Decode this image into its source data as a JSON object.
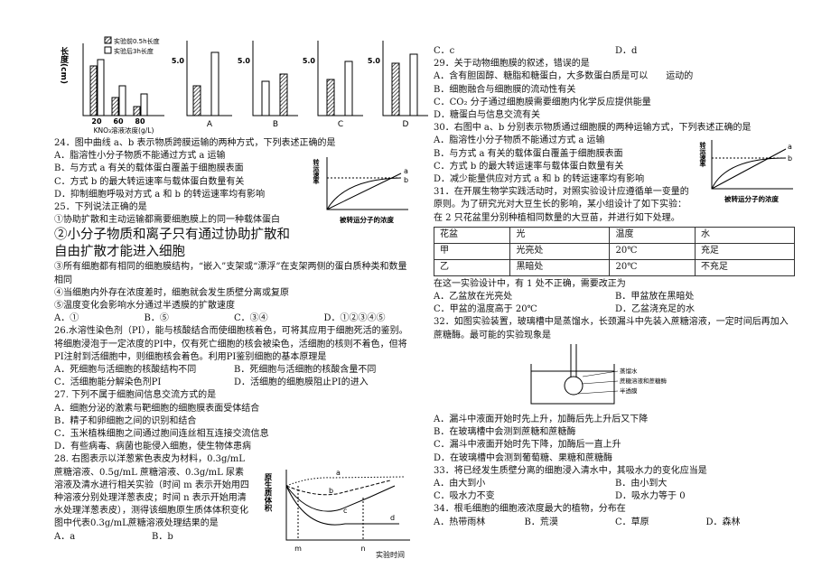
{
  "left_column": {
    "figure_1": {
      "legend": [
        "实验前0.5h长度",
        "实验后3h长度"
      ],
      "y_label": "长度(cm)",
      "x_label": "KNO₃溶液浓度(g/L)",
      "x_ticks": [
        "20",
        "60",
        "80"
      ],
      "y_tick": "5.0",
      "panels": [
        "A",
        "B",
        "C",
        "D"
      ]
    },
    "questions": [
      {
        "stem": "24．图中曲线 a、b 表示物质跨膜运输的两种方式，下列表述正确的是",
        "options": [
          "A．脂溶性小分子物质不能通过方式 a 运输",
          "B．与方式 a 有关的载体蛋白覆盖于细胞膜表面",
          "C．方式 b 的最大转运速率与载体蛋白数量有关",
          "D．抑制细胞呼吸对方式 a 和 b 的转运速率均有影响"
        ],
        "figure": {
          "y_label": "转运速率",
          "x_label": "被转运分子的浓度",
          "curves": [
            "a",
            "b"
          ]
        }
      },
      {
        "stem": "25．下列说法正确的是",
        "items": [
          "①协助扩散和主动运输都需要细胞膜上的同一种载体蛋白",
          "②小分子物质和离子只有通过协助扩散和自由扩散才能进入细胞",
          "③所有细胞都有相同的细胞膜结构，“嵌入”支架或“漂浮”在支架两侧的蛋白质种类和数量相同",
          "④当细胞内外存在浓度差时，细胞就会发生质壁分离或复原",
          "⑤温度变化会影响水分通过半透膜的扩散速度"
        ],
        "options": [
          "A．①",
          "B．⑤",
          "C．③④",
          "D．①②③④⑤"
        ]
      },
      {
        "stem": "26.水溶性染色剂（PI），能与核酸结合而使细胞核着色，可将其应用于细胞死活的鉴别。将细胞浸泡于一定浓度的PI中，仅有死亡细胞的核会被染色，活细胞的核则不着色，但将PI注射到活细胞中，则细胞核会着色。利用PI鉴别细胞的基本原理是",
        "options": [
          "A．死细胞与活细胞的核酸结构不同",
          "B．死细胞与活细胞的核酸含量不同",
          "C．活细胞能分解染色剂PI",
          "D．活细胞的细胞膜阻止PI的进入"
        ]
      },
      {
        "stem": "27. 下列不属于细胞间信息交流方式的是",
        "options": [
          "A．细胞分泌的激素与靶细胞的细胞膜表面受体结合",
          "B．精子和卵细胞之间的识别和结合",
          "C．玉米植株细胞之间通过胞间连丝相互连接交流信息",
          "D．有些病毒、病菌也能侵入细胞，使生物体患病"
        ]
      },
      {
        "stem": "28. 右图表示以洋葱紫色表皮为材料，0.3g/mL 蔗糖溶液、0.5g/mL 蔗糖溶液、0.3g/mL 尿素溶液及清水进行相关实验（时间 m 表示开始用四种溶液分别处理洋葱表皮；时间 n 表示开始用清水处理洋葱表皮），测得该细胞原生质体体积变化图中代表0.3g/mL蔗糖溶液处理结果的是",
        "options": [
          "A．a",
          "B．b"
        ],
        "figure": {
          "y_label": "原生质体积",
          "x_label": "实验时间",
          "times": [
            "m",
            "n"
          ],
          "curves": [
            "a",
            "b",
            "c",
            "d"
          ]
        }
      }
    ]
  },
  "right_column": {
    "continued_options": [
      "C．c",
      "D．d"
    ],
    "questions": [
      {
        "stem": "29．关于动物细胞膜的叙述，错误的是",
        "options": [
          "A．含有胆固醇、糖脂和糖蛋白，大多数蛋白质是可以　　运动的",
          "B．细胞融合与细胞膜的流动性有关",
          "C．CO₂ 分子通过细胞膜需要细胞内化学反应提供能量",
          "D．糖蛋白与信息交流有关"
        ]
      },
      {
        "stem": "30．右图中 a、b 分别表示物质通过细胞膜的两种运输方式，下列表述正确的是",
        "options": [
          "A．脂溶性小分子物质不能通过方式 a 运输",
          "B．与方式 a 有关的载体蛋白覆盖于细胞膜表面",
          "C．方式 b 的最大转运速率与载体蛋白数量有关",
          "D．减少能量供应对方式 a 和 b 的转运速率均有影响"
        ],
        "figure": {
          "y_label": "转运速率",
          "x_label": "被转运分子的浓度",
          "curves": [
            "a",
            "b"
          ]
        }
      },
      {
        "stem": "31．在开展生物学实践活动时，对照实验设计应遵循单一变量的原则。为了研究光对大豆生长的影响，某小组设计了如下实验：在 2 只花盆里分别种植相同数量的大豆苗，并进行如下处理。",
        "table": {
          "header": [
            "花盆",
            "光",
            "温度",
            "水"
          ],
          "rows": [
            [
              "甲",
              "光亮处",
              "20℃",
              "充足"
            ],
            [
              "乙",
              "黑暗处",
              "20℃",
              "不充足"
            ]
          ]
        },
        "follow_up": "在这一实验设计中，有 1 处不正确，需要改正为",
        "options": [
          "A．乙盆放在光亮处",
          "B．甲盆放在黑暗处",
          "C．甲盆的温度高于 20℃",
          "D．乙盆浇充足的水"
        ]
      },
      {
        "stem": "32．如图实验装置，玻璃槽中是蒸馏水，长颈漏斗中先装入蔗糖溶液，一定时间后再加入蔗糖酶。最可能的实验现象是",
        "options": [
          "A．漏斗中液面开始时先上升，加酶后先上升后又下降",
          "B．在玻璃槽中会测到蔗糖和蔗糖酶",
          "C．漏斗中液面开始时先下降，加酶后一直上升",
          "D．在玻璃槽中会测到葡萄糖、果糖和蔗糖酶"
        ],
        "figure": {
          "labels": [
            "蒸馏水",
            "蔗糖溶液和蔗糖酶",
            "半透膜"
          ]
        }
      },
      {
        "stem": "33．将已经发生质壁分离的细胞浸入清水中，其吸水力的变化应当是",
        "options": [
          "A．由大到小",
          "B．由小到大",
          "C．吸水力不变",
          "D．吸水力等于 0"
        ]
      },
      {
        "stem": "34．根毛细胞的细胞液浓度最大的植物，分布在",
        "options": [
          "A．热带雨林",
          "B．荒漠",
          "C．草原",
          "D．森林"
        ]
      }
    ]
  }
}
